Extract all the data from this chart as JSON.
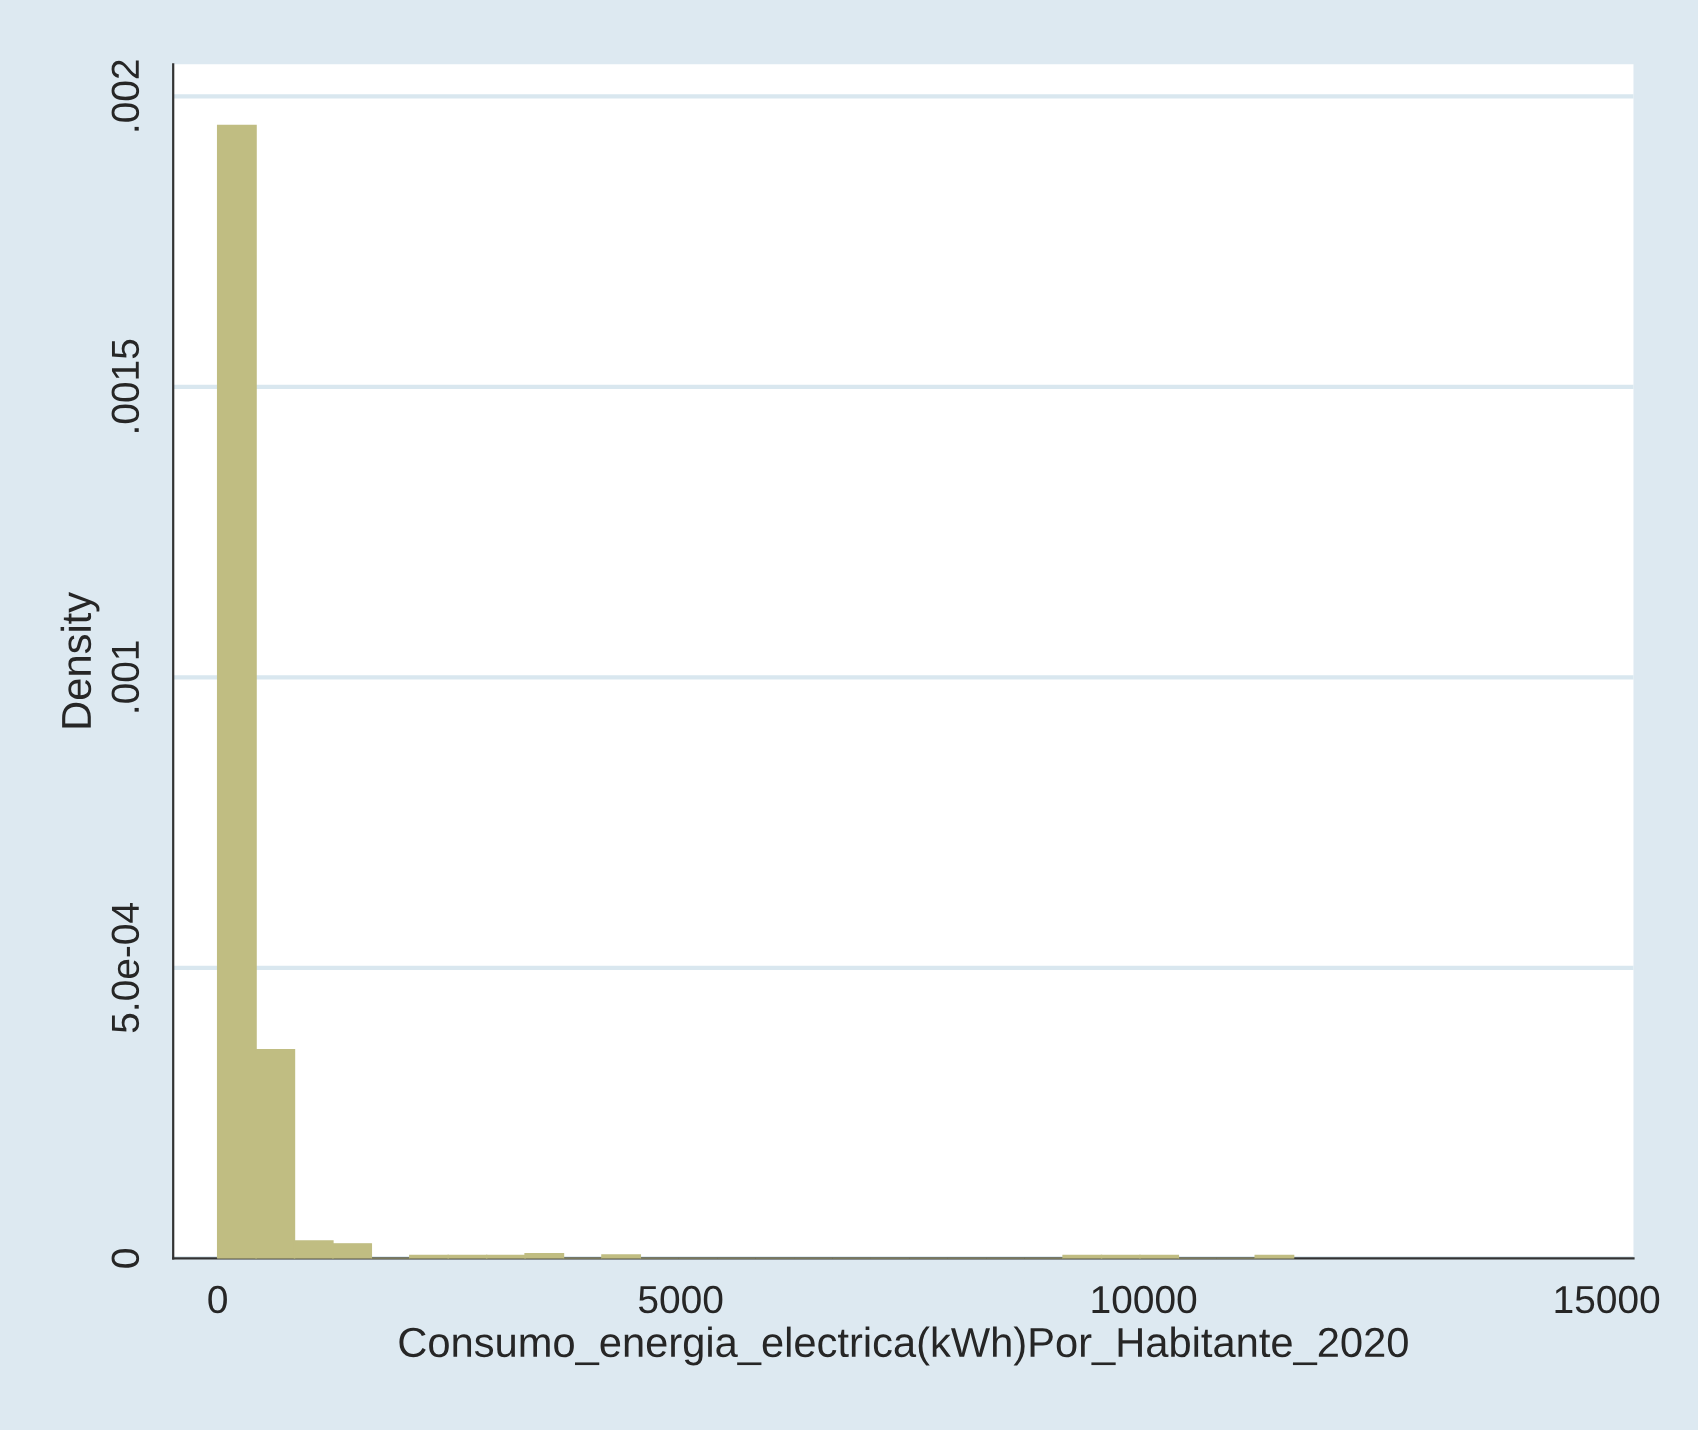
{
  "chart_data": {
    "type": "histogram",
    "xlabel": "Consumo_energia_electrica(kWh)Por_Habitante_2020",
    "ylabel": "Density",
    "bins": [
      0,
      415,
      830,
      1245,
      1660,
      2075,
      2490,
      2905,
      3320,
      3735,
      4150,
      4565,
      4980,
      5395,
      5810,
      6225,
      6640,
      7055,
      7470,
      7885,
      8300,
      8715,
      9130,
      9545,
      9960,
      10375,
      10790,
      11205,
      11620
    ],
    "values": [
      0.00195,
      0.000359,
      3e-05,
      2.5e-05,
      0,
      5e-06,
      5e-06,
      5e-06,
      8e-06,
      0,
      6e-06,
      0,
      0,
      0,
      0,
      0,
      0,
      0,
      0,
      0,
      0,
      0,
      5e-06,
      5e-06,
      5e-06,
      0,
      0,
      5e-06
    ],
    "color": "#c0bd82",
    "xlim": [
      -480,
      15290
    ],
    "xticks": [
      0,
      5000,
      10000,
      15000
    ],
    "ylim": [
      0,
      0.002055
    ],
    "yticks": [
      0,
      {
        "value": 0.0005,
        "label": "5.0e-04"
      },
      {
        "value": 0.001,
        "label": ".001"
      },
      {
        "value": 0.0015,
        "label": ".0015"
      },
      {
        "value": 0.002,
        "label": ".002"
      }
    ],
    "grid": "y"
  }
}
